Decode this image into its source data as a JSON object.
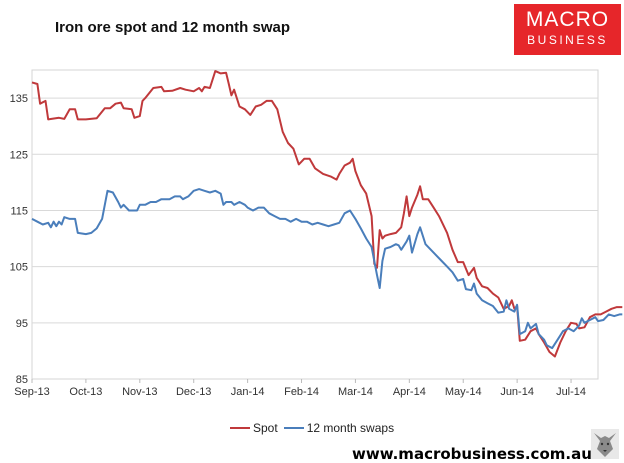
{
  "header": {
    "title": "Iron ore spot and 12 month swap"
  },
  "logo": {
    "line1": "MACRO",
    "line2": "BUSINESS",
    "color": "#e6262a"
  },
  "footer": {
    "website": "www.macrobusiness.com.au"
  },
  "chart_data": {
    "type": "line",
    "title": "Iron ore spot and 12 month swap",
    "xlabel": "",
    "ylabel": "",
    "ylim": [
      85,
      140
    ],
    "yticks": [
      85,
      95,
      105,
      115,
      125,
      135
    ],
    "xlim": [
      0,
      10.5
    ],
    "xticks": [
      {
        "x": 0,
        "label": "Sep-13"
      },
      {
        "x": 1,
        "label": "Oct-13"
      },
      {
        "x": 2,
        "label": "Nov-13"
      },
      {
        "x": 3,
        "label": "Dec-13"
      },
      {
        "x": 4,
        "label": "Jan-14"
      },
      {
        "x": 5,
        "label": "Feb-14"
      },
      {
        "x": 6,
        "label": "Mar-14"
      },
      {
        "x": 7,
        "label": "Apr-14"
      },
      {
        "x": 8,
        "label": "May-14"
      },
      {
        "x": 9,
        "label": "Jun-14"
      },
      {
        "x": 10,
        "label": "Jul-14"
      }
    ],
    "grid": true,
    "legend_position": "bottom",
    "series": [
      {
        "name": "Spot",
        "color": "#c0393b",
        "points": [
          [
            0.0,
            137.8
          ],
          [
            0.1,
            137.5
          ],
          [
            0.15,
            134.0
          ],
          [
            0.25,
            134.5
          ],
          [
            0.3,
            131.2
          ],
          [
            0.5,
            131.5
          ],
          [
            0.6,
            131.3
          ],
          [
            0.7,
            133.0
          ],
          [
            0.8,
            133.0
          ],
          [
            0.85,
            131.2
          ],
          [
            1.0,
            131.2
          ],
          [
            1.2,
            131.4
          ],
          [
            1.35,
            133.2
          ],
          [
            1.45,
            133.2
          ],
          [
            1.55,
            134.0
          ],
          [
            1.65,
            134.2
          ],
          [
            1.7,
            133.2
          ],
          [
            1.85,
            133.0
          ],
          [
            1.9,
            131.5
          ],
          [
            2.0,
            131.8
          ],
          [
            2.05,
            134.5
          ],
          [
            2.1,
            135.0
          ],
          [
            2.25,
            136.8
          ],
          [
            2.4,
            137.0
          ],
          [
            2.45,
            136.2
          ],
          [
            2.6,
            136.3
          ],
          [
            2.75,
            136.8
          ],
          [
            2.85,
            136.5
          ],
          [
            3.0,
            136.2
          ],
          [
            3.1,
            136.8
          ],
          [
            3.15,
            136.2
          ],
          [
            3.2,
            137.0
          ],
          [
            3.3,
            136.8
          ],
          [
            3.4,
            139.8
          ],
          [
            3.5,
            139.4
          ],
          [
            3.6,
            139.5
          ],
          [
            3.65,
            137.5
          ],
          [
            3.7,
            135.5
          ],
          [
            3.75,
            136.5
          ],
          [
            3.85,
            133.5
          ],
          [
            3.95,
            133.0
          ],
          [
            4.05,
            132.0
          ],
          [
            4.15,
            133.5
          ],
          [
            4.25,
            133.8
          ],
          [
            4.35,
            134.5
          ],
          [
            4.45,
            134.5
          ],
          [
            4.55,
            133.0
          ],
          [
            4.65,
            129.0
          ],
          [
            4.75,
            127.0
          ],
          [
            4.85,
            126.0
          ],
          [
            4.95,
            123.2
          ],
          [
            5.05,
            124.2
          ],
          [
            5.15,
            124.2
          ],
          [
            5.25,
            122.5
          ],
          [
            5.4,
            121.5
          ],
          [
            5.55,
            121.0
          ],
          [
            5.65,
            120.5
          ],
          [
            5.7,
            121.5
          ],
          [
            5.8,
            123.0
          ],
          [
            5.9,
            123.5
          ],
          [
            5.95,
            124.2
          ],
          [
            6.0,
            122.0
          ],
          [
            6.1,
            119.5
          ],
          [
            6.2,
            118.0
          ],
          [
            6.3,
            114.0
          ],
          [
            6.35,
            105.5
          ],
          [
            6.4,
            104.8
          ],
          [
            6.45,
            111.5
          ],
          [
            6.5,
            110.0
          ],
          [
            6.55,
            110.5
          ],
          [
            6.65,
            110.8
          ],
          [
            6.75,
            111.0
          ],
          [
            6.85,
            112.0
          ],
          [
            6.9,
            114.5
          ],
          [
            6.95,
            117.5
          ],
          [
            7.0,
            114.0
          ],
          [
            7.05,
            115.5
          ],
          [
            7.15,
            117.8
          ],
          [
            7.2,
            119.3
          ],
          [
            7.25,
            117.0
          ],
          [
            7.35,
            117.0
          ],
          [
            7.45,
            115.5
          ],
          [
            7.55,
            114.0
          ],
          [
            7.65,
            112.0
          ],
          [
            7.7,
            111.0
          ],
          [
            7.8,
            108.0
          ],
          [
            7.9,
            105.8
          ],
          [
            8.0,
            105.8
          ],
          [
            8.1,
            103.5
          ],
          [
            8.2,
            104.8
          ],
          [
            8.25,
            103.0
          ],
          [
            8.35,
            101.5
          ],
          [
            8.45,
            101.2
          ],
          [
            8.55,
            100.2
          ],
          [
            8.65,
            99.5
          ],
          [
            8.75,
            97.5
          ],
          [
            8.85,
            98.0
          ],
          [
            8.9,
            99.0
          ],
          [
            8.95,
            97.5
          ],
          [
            9.0,
            98.0
          ],
          [
            9.05,
            91.8
          ],
          [
            9.15,
            92.0
          ],
          [
            9.25,
            93.5
          ],
          [
            9.35,
            94.0
          ],
          [
            9.4,
            93.0
          ],
          [
            9.5,
            91.5
          ],
          [
            9.6,
            89.8
          ],
          [
            9.7,
            89.0
          ],
          [
            9.8,
            91.5
          ],
          [
            9.9,
            93.5
          ],
          [
            10.0,
            95.0
          ],
          [
            10.1,
            94.8
          ],
          [
            10.15,
            94.0
          ],
          [
            10.25,
            94.2
          ],
          [
            10.35,
            96.0
          ],
          [
            10.45,
            96.5
          ],
          [
            10.55,
            96.5
          ],
          [
            10.65,
            97.0
          ],
          [
            10.75,
            97.5
          ],
          [
            10.85,
            97.8
          ],
          [
            10.95,
            97.8
          ]
        ]
      },
      {
        "name": "12 month swaps",
        "color": "#4a7ebb",
        "points": [
          [
            0.0,
            113.5
          ],
          [
            0.1,
            113.0
          ],
          [
            0.2,
            112.5
          ],
          [
            0.3,
            112.8
          ],
          [
            0.35,
            112.0
          ],
          [
            0.4,
            113.0
          ],
          [
            0.45,
            112.2
          ],
          [
            0.5,
            113.0
          ],
          [
            0.55,
            112.5
          ],
          [
            0.6,
            113.8
          ],
          [
            0.7,
            113.5
          ],
          [
            0.8,
            113.5
          ],
          [
            0.85,
            111.0
          ],
          [
            1.0,
            110.8
          ],
          [
            1.1,
            111.0
          ],
          [
            1.2,
            111.8
          ],
          [
            1.3,
            113.5
          ],
          [
            1.4,
            118.5
          ],
          [
            1.5,
            118.2
          ],
          [
            1.6,
            116.5
          ],
          [
            1.65,
            115.5
          ],
          [
            1.7,
            116.0
          ],
          [
            1.8,
            115.0
          ],
          [
            1.85,
            115.0
          ],
          [
            1.95,
            115.0
          ],
          [
            2.0,
            116.0
          ],
          [
            2.1,
            116.0
          ],
          [
            2.2,
            116.5
          ],
          [
            2.3,
            116.5
          ],
          [
            2.4,
            117.0
          ],
          [
            2.55,
            117.0
          ],
          [
            2.65,
            117.5
          ],
          [
            2.75,
            117.5
          ],
          [
            2.8,
            117.0
          ],
          [
            2.9,
            117.5
          ],
          [
            3.0,
            118.5
          ],
          [
            3.1,
            118.8
          ],
          [
            3.2,
            118.5
          ],
          [
            3.3,
            118.2
          ],
          [
            3.4,
            118.5
          ],
          [
            3.5,
            118.0
          ],
          [
            3.55,
            116.0
          ],
          [
            3.6,
            116.5
          ],
          [
            3.7,
            116.5
          ],
          [
            3.75,
            116.0
          ],
          [
            3.85,
            116.5
          ],
          [
            3.95,
            116.0
          ],
          [
            4.0,
            115.5
          ],
          [
            4.1,
            115.0
          ],
          [
            4.2,
            115.5
          ],
          [
            4.3,
            115.5
          ],
          [
            4.4,
            114.5
          ],
          [
            4.5,
            114.0
          ],
          [
            4.6,
            113.5
          ],
          [
            4.7,
            113.5
          ],
          [
            4.8,
            113.0
          ],
          [
            4.9,
            113.5
          ],
          [
            5.0,
            113.0
          ],
          [
            5.1,
            113.0
          ],
          [
            5.2,
            112.5
          ],
          [
            5.3,
            112.8
          ],
          [
            5.4,
            112.5
          ],
          [
            5.5,
            112.2
          ],
          [
            5.6,
            112.5
          ],
          [
            5.7,
            112.8
          ],
          [
            5.8,
            114.5
          ],
          [
            5.9,
            115.0
          ],
          [
            6.0,
            113.5
          ],
          [
            6.1,
            111.8
          ],
          [
            6.2,
            110.0
          ],
          [
            6.3,
            108.5
          ],
          [
            6.4,
            103.5
          ],
          [
            6.45,
            101.2
          ],
          [
            6.5,
            106.0
          ],
          [
            6.55,
            108.2
          ],
          [
            6.65,
            108.5
          ],
          [
            6.75,
            109.0
          ],
          [
            6.8,
            108.8
          ],
          [
            6.85,
            108.0
          ],
          [
            6.95,
            109.5
          ],
          [
            7.0,
            110.5
          ],
          [
            7.05,
            107.5
          ],
          [
            7.15,
            110.8
          ],
          [
            7.2,
            112.0
          ],
          [
            7.3,
            109.0
          ],
          [
            7.4,
            108.0
          ],
          [
            7.5,
            107.0
          ],
          [
            7.6,
            106.0
          ],
          [
            7.7,
            105.0
          ],
          [
            7.8,
            104.0
          ],
          [
            7.9,
            102.5
          ],
          [
            8.0,
            102.8
          ],
          [
            8.05,
            101.0
          ],
          [
            8.15,
            100.8
          ],
          [
            8.2,
            102.0
          ],
          [
            8.25,
            100.2
          ],
          [
            8.35,
            99.0
          ],
          [
            8.45,
            98.5
          ],
          [
            8.55,
            98.0
          ],
          [
            8.65,
            96.8
          ],
          [
            8.75,
            97.0
          ],
          [
            8.8,
            99.0
          ],
          [
            8.85,
            97.5
          ],
          [
            8.95,
            97.0
          ],
          [
            9.0,
            98.2
          ],
          [
            9.05,
            93.0
          ],
          [
            9.15,
            93.5
          ],
          [
            9.2,
            95.0
          ],
          [
            9.25,
            94.0
          ],
          [
            9.35,
            94.8
          ],
          [
            9.4,
            93.0
          ],
          [
            9.5,
            92.0
          ],
          [
            9.55,
            91.0
          ],
          [
            9.65,
            90.5
          ],
          [
            9.75,
            92.0
          ],
          [
            9.85,
            93.5
          ],
          [
            9.95,
            94.0
          ],
          [
            10.05,
            93.5
          ],
          [
            10.15,
            94.5
          ],
          [
            10.2,
            95.8
          ],
          [
            10.25,
            95.0
          ],
          [
            10.35,
            95.5
          ],
          [
            10.45,
            96.0
          ],
          [
            10.5,
            95.3
          ],
          [
            10.6,
            95.5
          ],
          [
            10.7,
            96.5
          ],
          [
            10.8,
            96.2
          ],
          [
            10.9,
            96.5
          ],
          [
            10.95,
            96.5
          ]
        ]
      }
    ]
  }
}
